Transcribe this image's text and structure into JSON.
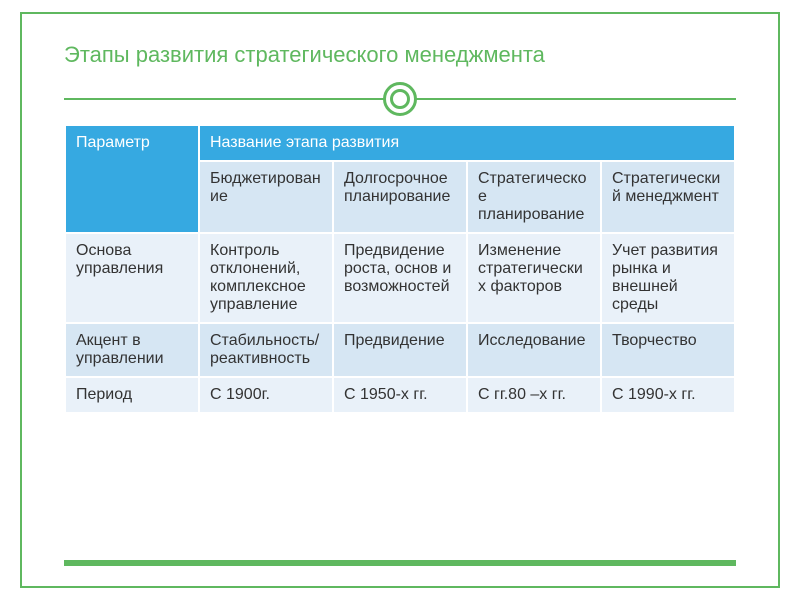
{
  "title": "Этапы развития стратегического менеджмента",
  "table": {
    "header": {
      "param": "Параметр",
      "stage_name": "Название этапа развития"
    },
    "stages": {
      "s1": "Бюджетирование",
      "s2": "Долгосрочное планирование",
      "s3": "Стратегическое планирование",
      "s4": "Стратегический менеджмент"
    },
    "rows": {
      "r1": {
        "label": "Основа управления",
        "c1": "Контроль отклонений, комплексное управление",
        "c2": "Предвидение роста, основ и возможностей",
        "c3": "Изменение стратегических факторов",
        "c4": "Учет развития рынка  и внешней среды"
      },
      "r2": {
        "label": "Акцент в управлении",
        "c1": "Стабильность/реактивность",
        "c2": "Предвидение",
        "c3": "Исследование",
        "c4": "Творчество"
      },
      "r3": {
        "label": "Период",
        "c1": "С 1900г.",
        "c2": "С 1950-х гг.",
        "c3": "С гг.80 –х гг.",
        "c4": "С 1990-х гг."
      }
    }
  },
  "colors": {
    "accent_green": "#5fb85f",
    "header_blue": "#36a9e1",
    "row_sub": "#d6e6f3",
    "row_alt": "#e9f1f9"
  }
}
